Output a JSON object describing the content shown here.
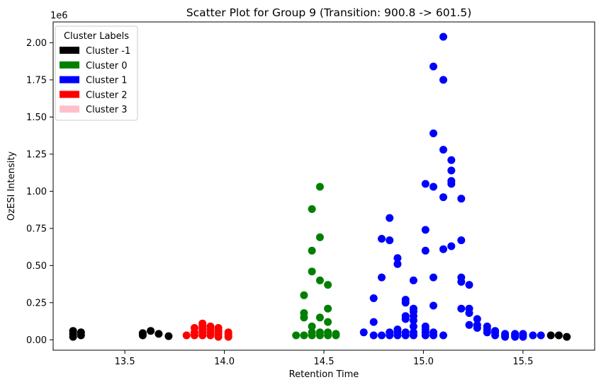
{
  "chart_data": {
    "type": "scatter",
    "title": "Scatter Plot for Group 9 (Transition: 900.8 -> 601.5)",
    "xlabel": "Retention Time",
    "ylabel": "OzESI Intensity",
    "y_offset_label": "1e6",
    "xlim": [
      13.14,
      15.86
    ],
    "ylim": [
      -0.07,
      2.14
    ],
    "x_ticks": [
      13.5,
      14.0,
      14.5,
      15.0,
      15.5
    ],
    "x_tick_labels": [
      "13.5",
      "14.0",
      "14.5",
      "15.0",
      "15.5"
    ],
    "y_ticks": [
      0.0,
      0.25,
      0.5,
      0.75,
      1.0,
      1.25,
      1.5,
      1.75,
      2.0
    ],
    "y_tick_labels": [
      "0.00",
      "0.25",
      "0.50",
      "0.75",
      "1.00",
      "1.25",
      "1.50",
      "1.75",
      "2.00"
    ],
    "legend": {
      "title": "Cluster Labels",
      "position": "top-left",
      "entries": [
        {
          "label": "Cluster -1",
          "color": "#000000"
        },
        {
          "label": "Cluster 0",
          "color": "#008000"
        },
        {
          "label": "Cluster 1",
          "color": "#0000ff"
        },
        {
          "label": "Cluster 2",
          "color": "#ff0000"
        },
        {
          "label": "Cluster 3",
          "color": "#ffc0cb"
        }
      ]
    },
    "series": [
      {
        "name": "Cluster -1",
        "color": "#000000",
        "points": [
          [
            13.24,
            0.02
          ],
          [
            13.24,
            0.04
          ],
          [
            13.24,
            0.06
          ],
          [
            13.28,
            0.03
          ],
          [
            13.28,
            0.05
          ],
          [
            13.59,
            0.03
          ],
          [
            13.59,
            0.045
          ],
          [
            13.63,
            0.06
          ],
          [
            13.67,
            0.04
          ],
          [
            13.72,
            0.025
          ],
          [
            15.64,
            0.03
          ],
          [
            15.68,
            0.03
          ],
          [
            15.72,
            0.02
          ]
        ]
      },
      {
        "name": "Cluster 0",
        "color": "#008000",
        "points": [
          [
            14.36,
            0.03
          ],
          [
            14.4,
            0.03
          ],
          [
            14.4,
            0.15
          ],
          [
            14.4,
            0.18
          ],
          [
            14.4,
            0.3
          ],
          [
            14.44,
            0.03
          ],
          [
            14.44,
            0.05
          ],
          [
            14.44,
            0.09
          ],
          [
            14.44,
            0.46
          ],
          [
            14.44,
            0.6
          ],
          [
            14.44,
            0.88
          ],
          [
            14.48,
            0.03
          ],
          [
            14.48,
            0.05
          ],
          [
            14.48,
            0.15
          ],
          [
            14.48,
            0.4
          ],
          [
            14.48,
            0.69
          ],
          [
            14.48,
            1.03
          ],
          [
            14.52,
            0.03
          ],
          [
            14.52,
            0.05
          ],
          [
            14.52,
            0.12
          ],
          [
            14.52,
            0.21
          ],
          [
            14.52,
            0.37
          ],
          [
            14.56,
            0.03
          ],
          [
            14.56,
            0.04
          ]
        ]
      },
      {
        "name": "Cluster 1",
        "color": "#0000ff",
        "points": [
          [
            14.7,
            0.05
          ],
          [
            14.75,
            0.03
          ],
          [
            14.75,
            0.12
          ],
          [
            14.75,
            0.28
          ],
          [
            14.79,
            0.03
          ],
          [
            14.79,
            0.42
          ],
          [
            14.79,
            0.68
          ],
          [
            14.83,
            0.03
          ],
          [
            14.83,
            0.05
          ],
          [
            14.83,
            0.67
          ],
          [
            14.83,
            0.82
          ],
          [
            14.87,
            0.03
          ],
          [
            14.87,
            0.05
          ],
          [
            14.87,
            0.07
          ],
          [
            14.87,
            0.51
          ],
          [
            14.87,
            0.55
          ],
          [
            14.91,
            0.03
          ],
          [
            14.91,
            0.05
          ],
          [
            14.91,
            0.14
          ],
          [
            14.91,
            0.16
          ],
          [
            14.91,
            0.25
          ],
          [
            14.91,
            0.27
          ],
          [
            14.95,
            0.03
          ],
          [
            14.95,
            0.05
          ],
          [
            14.95,
            0.09
          ],
          [
            14.95,
            0.13
          ],
          [
            14.95,
            0.16
          ],
          [
            14.95,
            0.19
          ],
          [
            14.95,
            0.21
          ],
          [
            14.95,
            0.4
          ],
          [
            15.01,
            0.03
          ],
          [
            15.01,
            0.05
          ],
          [
            15.01,
            0.07
          ],
          [
            15.01,
            0.09
          ],
          [
            15.01,
            0.6
          ],
          [
            15.01,
            0.74
          ],
          [
            15.01,
            1.05
          ],
          [
            15.05,
            0.03
          ],
          [
            15.05,
            0.05
          ],
          [
            15.05,
            0.23
          ],
          [
            15.05,
            0.42
          ],
          [
            15.05,
            1.03
          ],
          [
            15.05,
            1.39
          ],
          [
            15.05,
            1.84
          ],
          [
            15.1,
            0.03
          ],
          [
            15.1,
            0.61
          ],
          [
            15.1,
            0.96
          ],
          [
            15.1,
            1.28
          ],
          [
            15.1,
            1.75
          ],
          [
            15.1,
            2.04
          ],
          [
            15.14,
            0.63
          ],
          [
            15.14,
            1.05
          ],
          [
            15.14,
            1.07
          ],
          [
            15.14,
            1.14
          ],
          [
            15.14,
            1.21
          ],
          [
            15.19,
            0.21
          ],
          [
            15.19,
            0.39
          ],
          [
            15.19,
            0.42
          ],
          [
            15.19,
            0.67
          ],
          [
            15.19,
            0.95
          ],
          [
            15.23,
            0.1
          ],
          [
            15.23,
            0.18
          ],
          [
            15.23,
            0.21
          ],
          [
            15.23,
            0.37
          ],
          [
            15.27,
            0.08
          ],
          [
            15.27,
            0.1
          ],
          [
            15.27,
            0.14
          ],
          [
            15.32,
            0.05
          ],
          [
            15.32,
            0.07
          ],
          [
            15.32,
            0.09
          ],
          [
            15.36,
            0.03
          ],
          [
            15.36,
            0.05
          ],
          [
            15.36,
            0.06
          ],
          [
            15.41,
            0.02
          ],
          [
            15.41,
            0.03
          ],
          [
            15.41,
            0.04
          ],
          [
            15.46,
            0.02
          ],
          [
            15.46,
            0.03
          ],
          [
            15.46,
            0.04
          ],
          [
            15.5,
            0.02
          ],
          [
            15.5,
            0.03
          ],
          [
            15.5,
            0.04
          ],
          [
            15.55,
            0.03
          ],
          [
            15.59,
            0.03
          ]
        ]
      },
      {
        "name": "Cluster 2",
        "color": "#ff0000",
        "points": [
          [
            13.81,
            0.03
          ],
          [
            13.85,
            0.03
          ],
          [
            13.85,
            0.05
          ],
          [
            13.85,
            0.08
          ],
          [
            13.89,
            0.03
          ],
          [
            13.89,
            0.05
          ],
          [
            13.89,
            0.07
          ],
          [
            13.89,
            0.09
          ],
          [
            13.89,
            0.11
          ],
          [
            13.93,
            0.03
          ],
          [
            13.93,
            0.05
          ],
          [
            13.93,
            0.07
          ],
          [
            13.93,
            0.09
          ],
          [
            13.97,
            0.02
          ],
          [
            13.97,
            0.04
          ],
          [
            13.97,
            0.06
          ],
          [
            13.97,
            0.08
          ],
          [
            14.02,
            0.02
          ],
          [
            14.02,
            0.035
          ],
          [
            14.02,
            0.05
          ]
        ]
      }
    ]
  }
}
